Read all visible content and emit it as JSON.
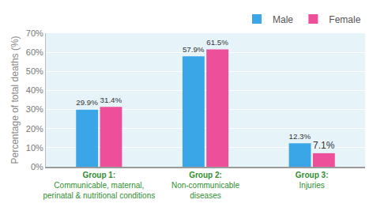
{
  "chart_data": {
    "type": "bar",
    "y_label": "Percentage of total deaths (%)",
    "categories": [
      "Group 1:\nCommunicable, maternal,\nperinatal & nutritional conditions",
      "Group 2:\nNon-communicable\ndiseases",
      "Group 3:\nInjuries"
    ],
    "series": [
      {
        "name": "Male",
        "color": "#3aa6e8",
        "values": [
          29.9,
          57.9,
          12.3
        ],
        "value_labels": [
          "29.9%",
          "57.9%",
          "12.3%"
        ]
      },
      {
        "name": "Female",
        "color": "#ee4f9a",
        "values": [
          31.4,
          61.5,
          7.1
        ],
        "value_labels": [
          "31.4%",
          "61.5%",
          "7.1%"
        ]
      }
    ],
    "ylim": [
      0,
      70
    ],
    "yticks": [
      {
        "value": 0,
        "label": "0%"
      },
      {
        "value": 10,
        "label": "10%"
      },
      {
        "value": 20,
        "label": "20%"
      },
      {
        "value": 30,
        "label": "30%"
      },
      {
        "value": 40,
        "label": "40%"
      },
      {
        "value": 50,
        "label": "50%"
      },
      {
        "value": 60,
        "label": "60%"
      },
      {
        "value": 70,
        "label": "70%"
      }
    ],
    "grid": true,
    "legend": "upper right",
    "data_labels": true
  }
}
